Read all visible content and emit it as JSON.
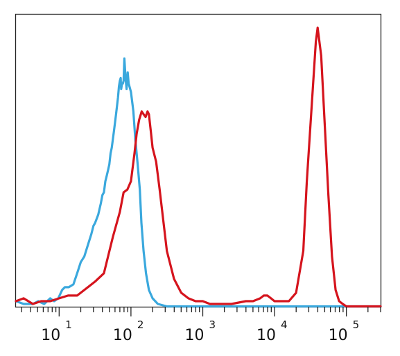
{
  "chart_data": {
    "type": "line",
    "title": "",
    "xlabel": "",
    "ylabel": "",
    "x_scale": "log",
    "xlim": [
      2.5,
      300000
    ],
    "ylim": [
      0,
      1
    ],
    "grid": false,
    "legend": "none",
    "x_ticks": [
      {
        "value": 10,
        "base": "10",
        "exp": "1"
      },
      {
        "value": 100,
        "base": "10",
        "exp": "2"
      },
      {
        "value": 1000,
        "base": "10",
        "exp": "3"
      },
      {
        "value": 10000,
        "base": "10",
        "exp": "4"
      },
      {
        "value": 100000,
        "base": "10",
        "exp": "5"
      }
    ],
    "series": [
      {
        "color": "#3aa8dd",
        "x": [
          2.5,
          3.2,
          4.3,
          5.1,
          6.2,
          7.5,
          8.5,
          9.7,
          11,
          12,
          13.6,
          15.8,
          17.8,
          20,
          22.4,
          25,
          28,
          30,
          31.6,
          35,
          38,
          40,
          42,
          44,
          46,
          48,
          50,
          52,
          54,
          56,
          58,
          60,
          62,
          64,
          66,
          68,
          70,
          72,
          73,
          75,
          77,
          79,
          81,
          84,
          87,
          90,
          93,
          100,
          108,
          115,
          124,
          133,
          140,
          150,
          162,
          178,
          200,
          237,
          316,
          500,
          1000,
          10000,
          300000
        ],
        "y": [
          0.02,
          0.01,
          0.01,
          0.02,
          0.01,
          0.03,
          0.02,
          0.03,
          0.06,
          0.07,
          0.07,
          0.08,
          0.12,
          0.16,
          0.18,
          0.22,
          0.26,
          0.29,
          0.3,
          0.33,
          0.37,
          0.4,
          0.41,
          0.45,
          0.47,
          0.49,
          0.51,
          0.55,
          0.57,
          0.6,
          0.63,
          0.66,
          0.69,
          0.72,
          0.75,
          0.79,
          0.81,
          0.82,
          0.78,
          0.8,
          0.8,
          0.81,
          0.89,
          0.82,
          0.78,
          0.84,
          0.8,
          0.77,
          0.7,
          0.6,
          0.51,
          0.42,
          0.3,
          0.2,
          0.12,
          0.06,
          0.03,
          0.01,
          0.0,
          0.0,
          0.0,
          0.0,
          0.0
        ]
      },
      {
        "color": "#d5141d",
        "x": [
          2.5,
          3.2,
          4.3,
          5.6,
          7.5,
          10,
          13.3,
          17.8,
          22.4,
          31.6,
          42,
          56,
          70,
          79,
          89,
          100,
          112,
          120,
          130,
          141,
          150,
          160,
          170,
          178,
          189,
          200,
          224,
          251,
          282,
          316,
          398,
          501,
          631,
          794,
          1000,
          1259,
          1585,
          2512,
          3981,
          5012,
          6310,
          7079,
          7943,
          8913,
          10000,
          11220,
          12589,
          15849,
          19953,
          25119,
          28184,
          31623,
          35481,
          37584,
          39811,
          44668,
          50119,
          56234,
          63096,
          70795,
          79433,
          89125,
          100000,
          300000
        ],
        "y": [
          0.02,
          0.03,
          0.01,
          0.02,
          0.02,
          0.03,
          0.04,
          0.04,
          0.06,
          0.09,
          0.12,
          0.25,
          0.34,
          0.41,
          0.42,
          0.45,
          0.55,
          0.62,
          0.67,
          0.7,
          0.69,
          0.68,
          0.7,
          0.69,
          0.63,
          0.57,
          0.52,
          0.42,
          0.31,
          0.2,
          0.1,
          0.05,
          0.03,
          0.02,
          0.02,
          0.01,
          0.01,
          0.01,
          0.02,
          0.02,
          0.03,
          0.04,
          0.04,
          0.03,
          0.02,
          0.02,
          0.02,
          0.02,
          0.05,
          0.2,
          0.45,
          0.65,
          0.85,
          0.95,
          1.0,
          0.9,
          0.65,
          0.4,
          0.18,
          0.06,
          0.02,
          0.01,
          0.0,
          0.0
        ]
      }
    ]
  }
}
